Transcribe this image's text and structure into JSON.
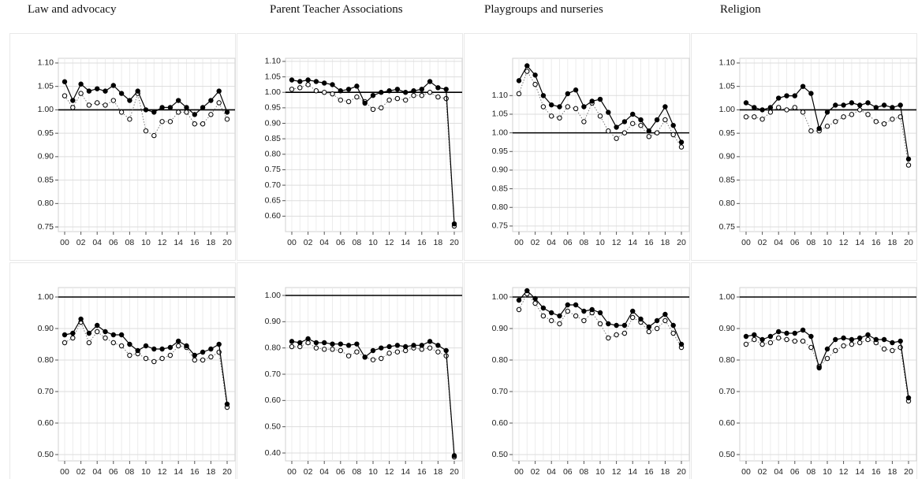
{
  "chart_data": [
    {
      "type": "line",
      "title": "Law and advocacy",
      "x": [
        0,
        1,
        2,
        3,
        4,
        5,
        6,
        7,
        8,
        9,
        10,
        11,
        12,
        13,
        14,
        15,
        16,
        17,
        18,
        19,
        20
      ],
      "xticks": [
        {
          "value": 0,
          "label": "00"
        },
        {
          "value": 2,
          "label": "02"
        },
        {
          "value": 4,
          "label": "04"
        },
        {
          "value": 6,
          "label": "06"
        },
        {
          "value": 8,
          "label": "08"
        },
        10,
        12,
        14,
        16,
        18,
        20
      ],
      "ylim": [
        0.74,
        1.11
      ],
      "yticks": [
        0.75,
        {
          "value": 0.8,
          "label": "0.80"
        },
        0.85,
        {
          "value": 0.9,
          "label": "0.90"
        },
        0.95,
        {
          "value": 1,
          "label": "1.00"
        },
        1.05,
        {
          "value": 1.1,
          "label": "1.10"
        }
      ],
      "hline": 1,
      "grid": true,
      "series": [
        {
          "color": "#000000",
          "marker": "open",
          "dash": true,
          "values": [
            1.03,
            1.005,
            1.035,
            1.01,
            1.015,
            1.01,
            1.02,
            0.995,
            0.98,
            1.035,
            0.955,
            0.945,
            0.975,
            0.975,
            0.995,
            0.995,
            0.97,
            0.97,
            0.99,
            1.015,
            0.98
          ]
        },
        {
          "color": "#000000",
          "marker": "filled",
          "dash": false,
          "values": [
            1.06,
            1.02,
            1.055,
            1.04,
            1.045,
            1.04,
            1.052,
            1.035,
            1.02,
            1.04,
            1.0,
            0.995,
            1.005,
            1.005,
            1.02,
            1.005,
            0.99,
            1.005,
            1.02,
            1.04,
            0.995
          ]
        }
      ]
    },
    {
      "type": "line",
      "title": "Parent Teacher Associations",
      "x": [
        0,
        1,
        2,
        3,
        4,
        5,
        6,
        7,
        8,
        9,
        10,
        11,
        12,
        13,
        14,
        15,
        16,
        17,
        18,
        19,
        20
      ],
      "xticks": [
        {
          "value": 0,
          "label": "00"
        },
        {
          "value": 2,
          "label": "02"
        },
        {
          "value": 4,
          "label": "04"
        },
        {
          "value": 6,
          "label": "06"
        },
        {
          "value": 8,
          "label": "08"
        },
        10,
        12,
        14,
        16,
        18,
        20
      ],
      "ylim": [
        0.55,
        1.11
      ],
      "yticks": [
        {
          "value": 0.6,
          "label": "0.60"
        },
        0.65,
        {
          "value": 0.7,
          "label": "0.70"
        },
        0.75,
        {
          "value": 0.8,
          "label": "0.80"
        },
        0.85,
        {
          "value": 0.9,
          "label": "0.90"
        },
        0.95,
        {
          "value": 1,
          "label": "1.00"
        },
        1.05,
        {
          "value": 1.1,
          "label": "1.10"
        }
      ],
      "hline": 1,
      "grid": true,
      "series": [
        {
          "color": "#000000",
          "marker": "open",
          "dash": true,
          "values": [
            1.01,
            1.015,
            1.025,
            1.005,
            1.0,
            0.995,
            0.975,
            0.97,
            0.985,
            0.97,
            0.945,
            0.95,
            0.975,
            0.98,
            0.975,
            0.99,
            0.99,
            1.0,
            0.985,
            0.98,
            0.568
          ]
        },
        {
          "color": "#000000",
          "marker": "filled",
          "dash": false,
          "values": [
            1.04,
            1.035,
            1.04,
            1.035,
            1.03,
            1.025,
            1.005,
            1.01,
            1.02,
            0.965,
            0.99,
            1.0,
            1.005,
            1.01,
            1.0,
            1.005,
            1.01,
            1.035,
            1.015,
            1.01,
            0.575
          ]
        }
      ]
    },
    {
      "type": "line",
      "title": "Playgroups and nurseries",
      "x": [
        0,
        1,
        2,
        3,
        4,
        5,
        6,
        7,
        8,
        9,
        10,
        11,
        12,
        13,
        14,
        15,
        16,
        17,
        18,
        19,
        20
      ],
      "xticks": [
        {
          "value": 0,
          "label": "00"
        },
        {
          "value": 2,
          "label": "02"
        },
        {
          "value": 4,
          "label": "04"
        },
        {
          "value": 6,
          "label": "06"
        },
        {
          "value": 8,
          "label": "08"
        },
        10,
        12,
        14,
        16,
        18,
        20
      ],
      "ylim": [
        0.735,
        1.2
      ],
      "yticks": [
        0.75,
        {
          "value": 0.8,
          "label": "0.80"
        },
        0.85,
        {
          "value": 0.9,
          "label": "0.90"
        },
        0.95,
        {
          "value": 1,
          "label": "1.00"
        },
        1.05,
        {
          "value": 1.1,
          "label": "1.10"
        }
      ],
      "hline": 1,
      "grid": true,
      "series": [
        {
          "color": "#000000",
          "marker": "open",
          "dash": true,
          "values": [
            1.105,
            1.165,
            1.13,
            1.07,
            1.045,
            1.04,
            1.07,
            1.065,
            1.03,
            1.08,
            1.045,
            1.005,
            0.985,
            1.0,
            1.025,
            1.02,
            0.99,
            1.0,
            1.035,
            0.995,
            0.962
          ]
        },
        {
          "color": "#000000",
          "marker": "filled",
          "dash": false,
          "values": [
            1.14,
            1.18,
            1.155,
            1.1,
            1.075,
            1.07,
            1.105,
            1.115,
            1.07,
            1.085,
            1.09,
            1.055,
            1.015,
            1.03,
            1.05,
            1.035,
            1.005,
            1.035,
            1.07,
            1.02,
            0.975
          ]
        }
      ]
    },
    {
      "type": "line",
      "title": "Religion",
      "x": [
        0,
        1,
        2,
        3,
        4,
        5,
        6,
        7,
        8,
        9,
        10,
        11,
        12,
        13,
        14,
        15,
        16,
        17,
        18,
        19,
        20
      ],
      "xticks": [
        {
          "value": 0,
          "label": "00"
        },
        {
          "value": 2,
          "label": "02"
        },
        {
          "value": 4,
          "label": "04"
        },
        {
          "value": 6,
          "label": "06"
        },
        {
          "value": 8,
          "label": "08"
        },
        10,
        12,
        14,
        16,
        18,
        20
      ],
      "ylim": [
        0.74,
        1.11
      ],
      "yticks": [
        0.75,
        {
          "value": 0.8,
          "label": "0.80"
        },
        0.85,
        {
          "value": 0.9,
          "label": "0.90"
        },
        0.95,
        {
          "value": 1,
          "label": "1.00"
        },
        1.05,
        {
          "value": 1.1,
          "label": "1.10"
        }
      ],
      "hline": 1,
      "grid": true,
      "series": [
        {
          "color": "#000000",
          "marker": "open",
          "dash": true,
          "values": [
            0.985,
            0.985,
            0.98,
            0.995,
            1.005,
            1.0,
            1.005,
            0.995,
            0.955,
            0.955,
            0.965,
            0.975,
            0.985,
            0.99,
            1.0,
            0.99,
            0.975,
            0.97,
            0.98,
            0.985,
            0.882
          ]
        },
        {
          "color": "#000000",
          "marker": "filled",
          "dash": false,
          "values": [
            1.015,
            1.005,
            1.0,
            1.005,
            1.025,
            1.03,
            1.03,
            1.05,
            1.035,
            0.96,
            0.995,
            1.01,
            1.01,
            1.015,
            1.01,
            1.015,
            1.005,
            1.01,
            1.005,
            1.01,
            0.895
          ]
        }
      ]
    },
    {
      "type": "line",
      "x": [
        0,
        1,
        2,
        3,
        4,
        5,
        6,
        7,
        8,
        9,
        10,
        11,
        12,
        13,
        14,
        15,
        16,
        17,
        18,
        19,
        20
      ],
      "xticks": [
        {
          "value": 0,
          "label": "00"
        },
        {
          "value": 2,
          "label": "02"
        },
        {
          "value": 4,
          "label": "04"
        },
        {
          "value": 6,
          "label": "06"
        },
        {
          "value": 8,
          "label": "08"
        },
        10,
        12,
        14,
        16,
        18,
        20
      ],
      "ylim": [
        0.48,
        1.03
      ],
      "yticks": [
        {
          "value": 0.5,
          "label": "0.50"
        },
        {
          "value": 0.6,
          "label": "0.60"
        },
        {
          "value": 0.7,
          "label": "0.70"
        },
        {
          "value": 0.8,
          "label": "0.80"
        },
        {
          "value": 0.9,
          "label": "0.90"
        },
        {
          "value": 1,
          "label": "1.00"
        }
      ],
      "hline": 1,
      "grid": true,
      "series": [
        {
          "color": "#000000",
          "marker": "open",
          "dash": true,
          "values": [
            0.855,
            0.87,
            0.92,
            0.855,
            0.89,
            0.87,
            0.855,
            0.845,
            0.815,
            0.82,
            0.805,
            0.795,
            0.805,
            0.815,
            0.845,
            0.84,
            0.8,
            0.8,
            0.81,
            0.825,
            0.65
          ]
        },
        {
          "color": "#000000",
          "marker": "filled",
          "dash": false,
          "values": [
            0.88,
            0.885,
            0.93,
            0.885,
            0.91,
            0.89,
            0.88,
            0.88,
            0.85,
            0.83,
            0.845,
            0.835,
            0.835,
            0.84,
            0.86,
            0.845,
            0.815,
            0.825,
            0.835,
            0.85,
            0.66
          ]
        }
      ]
    },
    {
      "type": "line",
      "x": [
        0,
        1,
        2,
        3,
        4,
        5,
        6,
        7,
        8,
        9,
        10,
        11,
        12,
        13,
        14,
        15,
        16,
        17,
        18,
        19,
        20
      ],
      "xticks": [
        {
          "value": 0,
          "label": "00"
        },
        {
          "value": 2,
          "label": "02"
        },
        {
          "value": 4,
          "label": "04"
        },
        {
          "value": 6,
          "label": "06"
        },
        {
          "value": 8,
          "label": "08"
        },
        10,
        12,
        14,
        16,
        18,
        20
      ],
      "ylim": [
        0.37,
        1.03
      ],
      "yticks": [
        {
          "value": 0.4,
          "label": "0.40"
        },
        {
          "value": 0.5,
          "label": "0.50"
        },
        {
          "value": 0.6,
          "label": "0.60"
        },
        {
          "value": 0.7,
          "label": "0.70"
        },
        {
          "value": 0.8,
          "label": "0.80"
        },
        {
          "value": 0.9,
          "label": "0.90"
        },
        {
          "value": 1,
          "label": "1.00"
        }
      ],
      "hline": 1,
      "grid": true,
      "series": [
        {
          "color": "#000000",
          "marker": "open",
          "dash": true,
          "values": [
            0.805,
            0.805,
            0.82,
            0.8,
            0.795,
            0.795,
            0.79,
            0.77,
            0.785,
            0.765,
            0.755,
            0.76,
            0.78,
            0.785,
            0.79,
            0.8,
            0.795,
            0.8,
            0.785,
            0.77,
            0.385
          ]
        },
        {
          "color": "#000000",
          "marker": "filled",
          "dash": false,
          "values": [
            0.825,
            0.82,
            0.835,
            0.82,
            0.82,
            0.815,
            0.815,
            0.81,
            0.815,
            0.765,
            0.79,
            0.8,
            0.805,
            0.81,
            0.805,
            0.81,
            0.81,
            0.825,
            0.81,
            0.79,
            0.39
          ]
        }
      ]
    },
    {
      "type": "line",
      "x": [
        0,
        1,
        2,
        3,
        4,
        5,
        6,
        7,
        8,
        9,
        10,
        11,
        12,
        13,
        14,
        15,
        16,
        17,
        18,
        19,
        20
      ],
      "xticks": [
        {
          "value": 0,
          "label": "00"
        },
        {
          "value": 2,
          "label": "02"
        },
        {
          "value": 4,
          "label": "04"
        },
        {
          "value": 6,
          "label": "06"
        },
        {
          "value": 8,
          "label": "08"
        },
        10,
        12,
        14,
        16,
        18,
        20
      ],
      "ylim": [
        0.48,
        1.03
      ],
      "yticks": [
        {
          "value": 0.5,
          "label": "0.50"
        },
        {
          "value": 0.6,
          "label": "0.60"
        },
        {
          "value": 0.7,
          "label": "0.70"
        },
        {
          "value": 0.8,
          "label": "0.80"
        },
        {
          "value": 0.9,
          "label": "0.90"
        },
        {
          "value": 1,
          "label": "1.00"
        }
      ],
      "hline": 1,
      "grid": true,
      "series": [
        {
          "color": "#000000",
          "marker": "open",
          "dash": true,
          "values": [
            0.96,
            1.01,
            0.98,
            0.94,
            0.925,
            0.915,
            0.955,
            0.94,
            0.925,
            0.95,
            0.915,
            0.87,
            0.88,
            0.885,
            0.935,
            0.92,
            0.89,
            0.9,
            0.925,
            0.885,
            0.84
          ]
        },
        {
          "color": "#000000",
          "marker": "filled",
          "dash": false,
          "values": [
            0.99,
            1.02,
            0.995,
            0.965,
            0.95,
            0.94,
            0.975,
            0.975,
            0.955,
            0.96,
            0.95,
            0.915,
            0.91,
            0.91,
            0.955,
            0.93,
            0.905,
            0.925,
            0.945,
            0.91,
            0.85
          ]
        }
      ]
    },
    {
      "type": "line",
      "x": [
        0,
        1,
        2,
        3,
        4,
        5,
        6,
        7,
        8,
        9,
        10,
        11,
        12,
        13,
        14,
        15,
        16,
        17,
        18,
        19,
        20
      ],
      "xticks": [
        {
          "value": 0,
          "label": "00"
        },
        {
          "value": 2,
          "label": "02"
        },
        {
          "value": 4,
          "label": "04"
        },
        {
          "value": 6,
          "label": "06"
        },
        {
          "value": 8,
          "label": "08"
        },
        10,
        12,
        14,
        16,
        18,
        20
      ],
      "ylim": [
        0.48,
        1.03
      ],
      "yticks": [
        {
          "value": 0.5,
          "label": "0.50"
        },
        {
          "value": 0.6,
          "label": "0.60"
        },
        {
          "value": 0.7,
          "label": "0.70"
        },
        {
          "value": 0.8,
          "label": "0.80"
        },
        {
          "value": 0.9,
          "label": "0.90"
        },
        {
          "value": 1,
          "label": "1.00"
        }
      ],
      "hline": 1,
      "grid": true,
      "series": [
        {
          "color": "#000000",
          "marker": "open",
          "dash": true,
          "values": [
            0.85,
            0.865,
            0.85,
            0.855,
            0.87,
            0.865,
            0.86,
            0.86,
            0.84,
            0.78,
            0.805,
            0.83,
            0.845,
            0.85,
            0.855,
            0.865,
            0.855,
            0.835,
            0.83,
            0.84,
            0.67
          ]
        },
        {
          "color": "#000000",
          "marker": "filled",
          "dash": false,
          "values": [
            0.875,
            0.88,
            0.865,
            0.875,
            0.89,
            0.885,
            0.885,
            0.895,
            0.875,
            0.775,
            0.835,
            0.865,
            0.87,
            0.865,
            0.87,
            0.88,
            0.865,
            0.865,
            0.855,
            0.86,
            0.68
          ]
        }
      ]
    }
  ]
}
